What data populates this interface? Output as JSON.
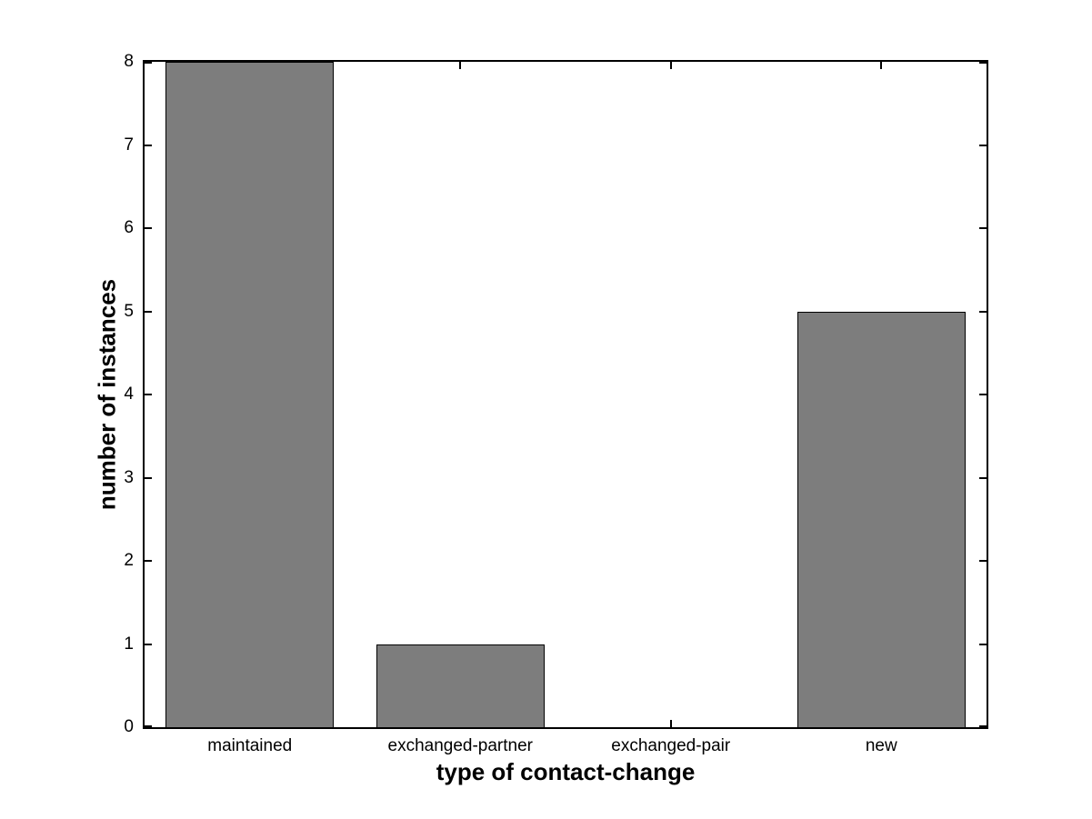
{
  "chart_data": {
    "type": "bar",
    "categories": [
      "maintained",
      "exchanged-partner",
      "exchanged-pair",
      "new"
    ],
    "values": [
      8,
      1,
      0,
      5
    ],
    "xlabel": "type of contact-change",
    "ylabel": "number of instances",
    "ylim": [
      0,
      8
    ],
    "yticks": [
      0,
      1,
      2,
      3,
      4,
      5,
      6,
      7,
      8
    ],
    "bar_color": "#7d7d7d",
    "bar_edge_color": "#000000",
    "bar_width_fraction": 0.8,
    "grid": false,
    "axis_style": "matlab-box-inward-ticks",
    "background_color": "#ffffff"
  }
}
